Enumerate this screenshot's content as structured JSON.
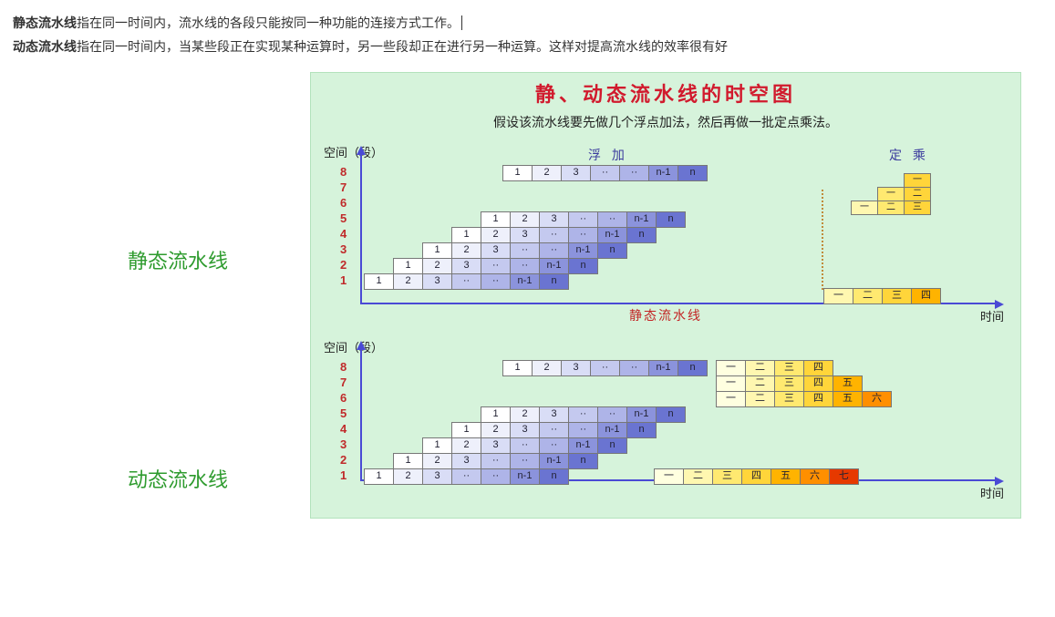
{
  "text": {
    "p1a": "静态流水线",
    "p1b": "指在同一时间内，流水线的各段只能按同一种功能的连接方式工作。",
    "p2a": "动态流水线",
    "p2b": "指在同一时间内，当某些段正在实现某种运算时，另一些段却正在进行另一种运算。这样对提高流水线的效率很有好",
    "side_static": "静态流水线",
    "side_dynamic": "动态流水线"
  },
  "fig": {
    "title": "静、动态流水线的时空图",
    "subtitle": "假设该流水线要先做几个浮点加法，然后再做一批定点乘法。",
    "y_label": "空间（段）",
    "x_label": "时间",
    "float_add": "浮 加",
    "fixed_mul": "定 乘",
    "caption1": "静态流水线",
    "y_ticks": [
      "8",
      "7",
      "6",
      "5",
      "4",
      "3",
      "2",
      "1"
    ],
    "seq_row": [
      "1",
      "2",
      "3",
      "··",
      "··",
      "n-1",
      "n"
    ],
    "pyramid": [
      [
        "1",
        "2",
        "3",
        "··",
        "··",
        "n-1",
        "n"
      ],
      [
        "1",
        "2",
        "3",
        "··",
        "··",
        "n-1",
        "n"
      ],
      [
        "1",
        "2",
        "3",
        "··",
        "··",
        "n-1",
        "n"
      ],
      [
        "1",
        "2",
        "3",
        "··",
        "··",
        "n-1",
        "n"
      ],
      [
        "1",
        "2",
        "3",
        "··",
        "··",
        "n-1",
        "n"
      ]
    ],
    "blue_grad": [
      "#ffffff",
      "#eef0fb",
      "#d9ddf6",
      "#c4c9ef",
      "#aeb4e8",
      "#8b93dc",
      "#6a74d1"
    ],
    "yellow_grad": [
      "#ffffe0",
      "#fff7b0",
      "#ffe970",
      "#ffd53a",
      "#ffb300",
      "#ff8f00",
      "#e63900"
    ],
    "mini": [
      [
        "一"
      ],
      [
        "一",
        "二"
      ],
      [
        "一",
        "二",
        "三"
      ]
    ],
    "mini_row": [
      "一",
      "二",
      "三",
      "四"
    ],
    "dyn_top_yellow": [
      [
        "一",
        "二",
        "三",
        "四"
      ],
      [
        "一",
        "二",
        "三",
        "四",
        "五"
      ],
      [
        "一",
        "二",
        "三",
        "四",
        "五",
        "六"
      ]
    ],
    "dyn_bottom_yellow": [
      "一",
      "二",
      "三",
      "四",
      "五",
      "六",
      "七"
    ]
  }
}
